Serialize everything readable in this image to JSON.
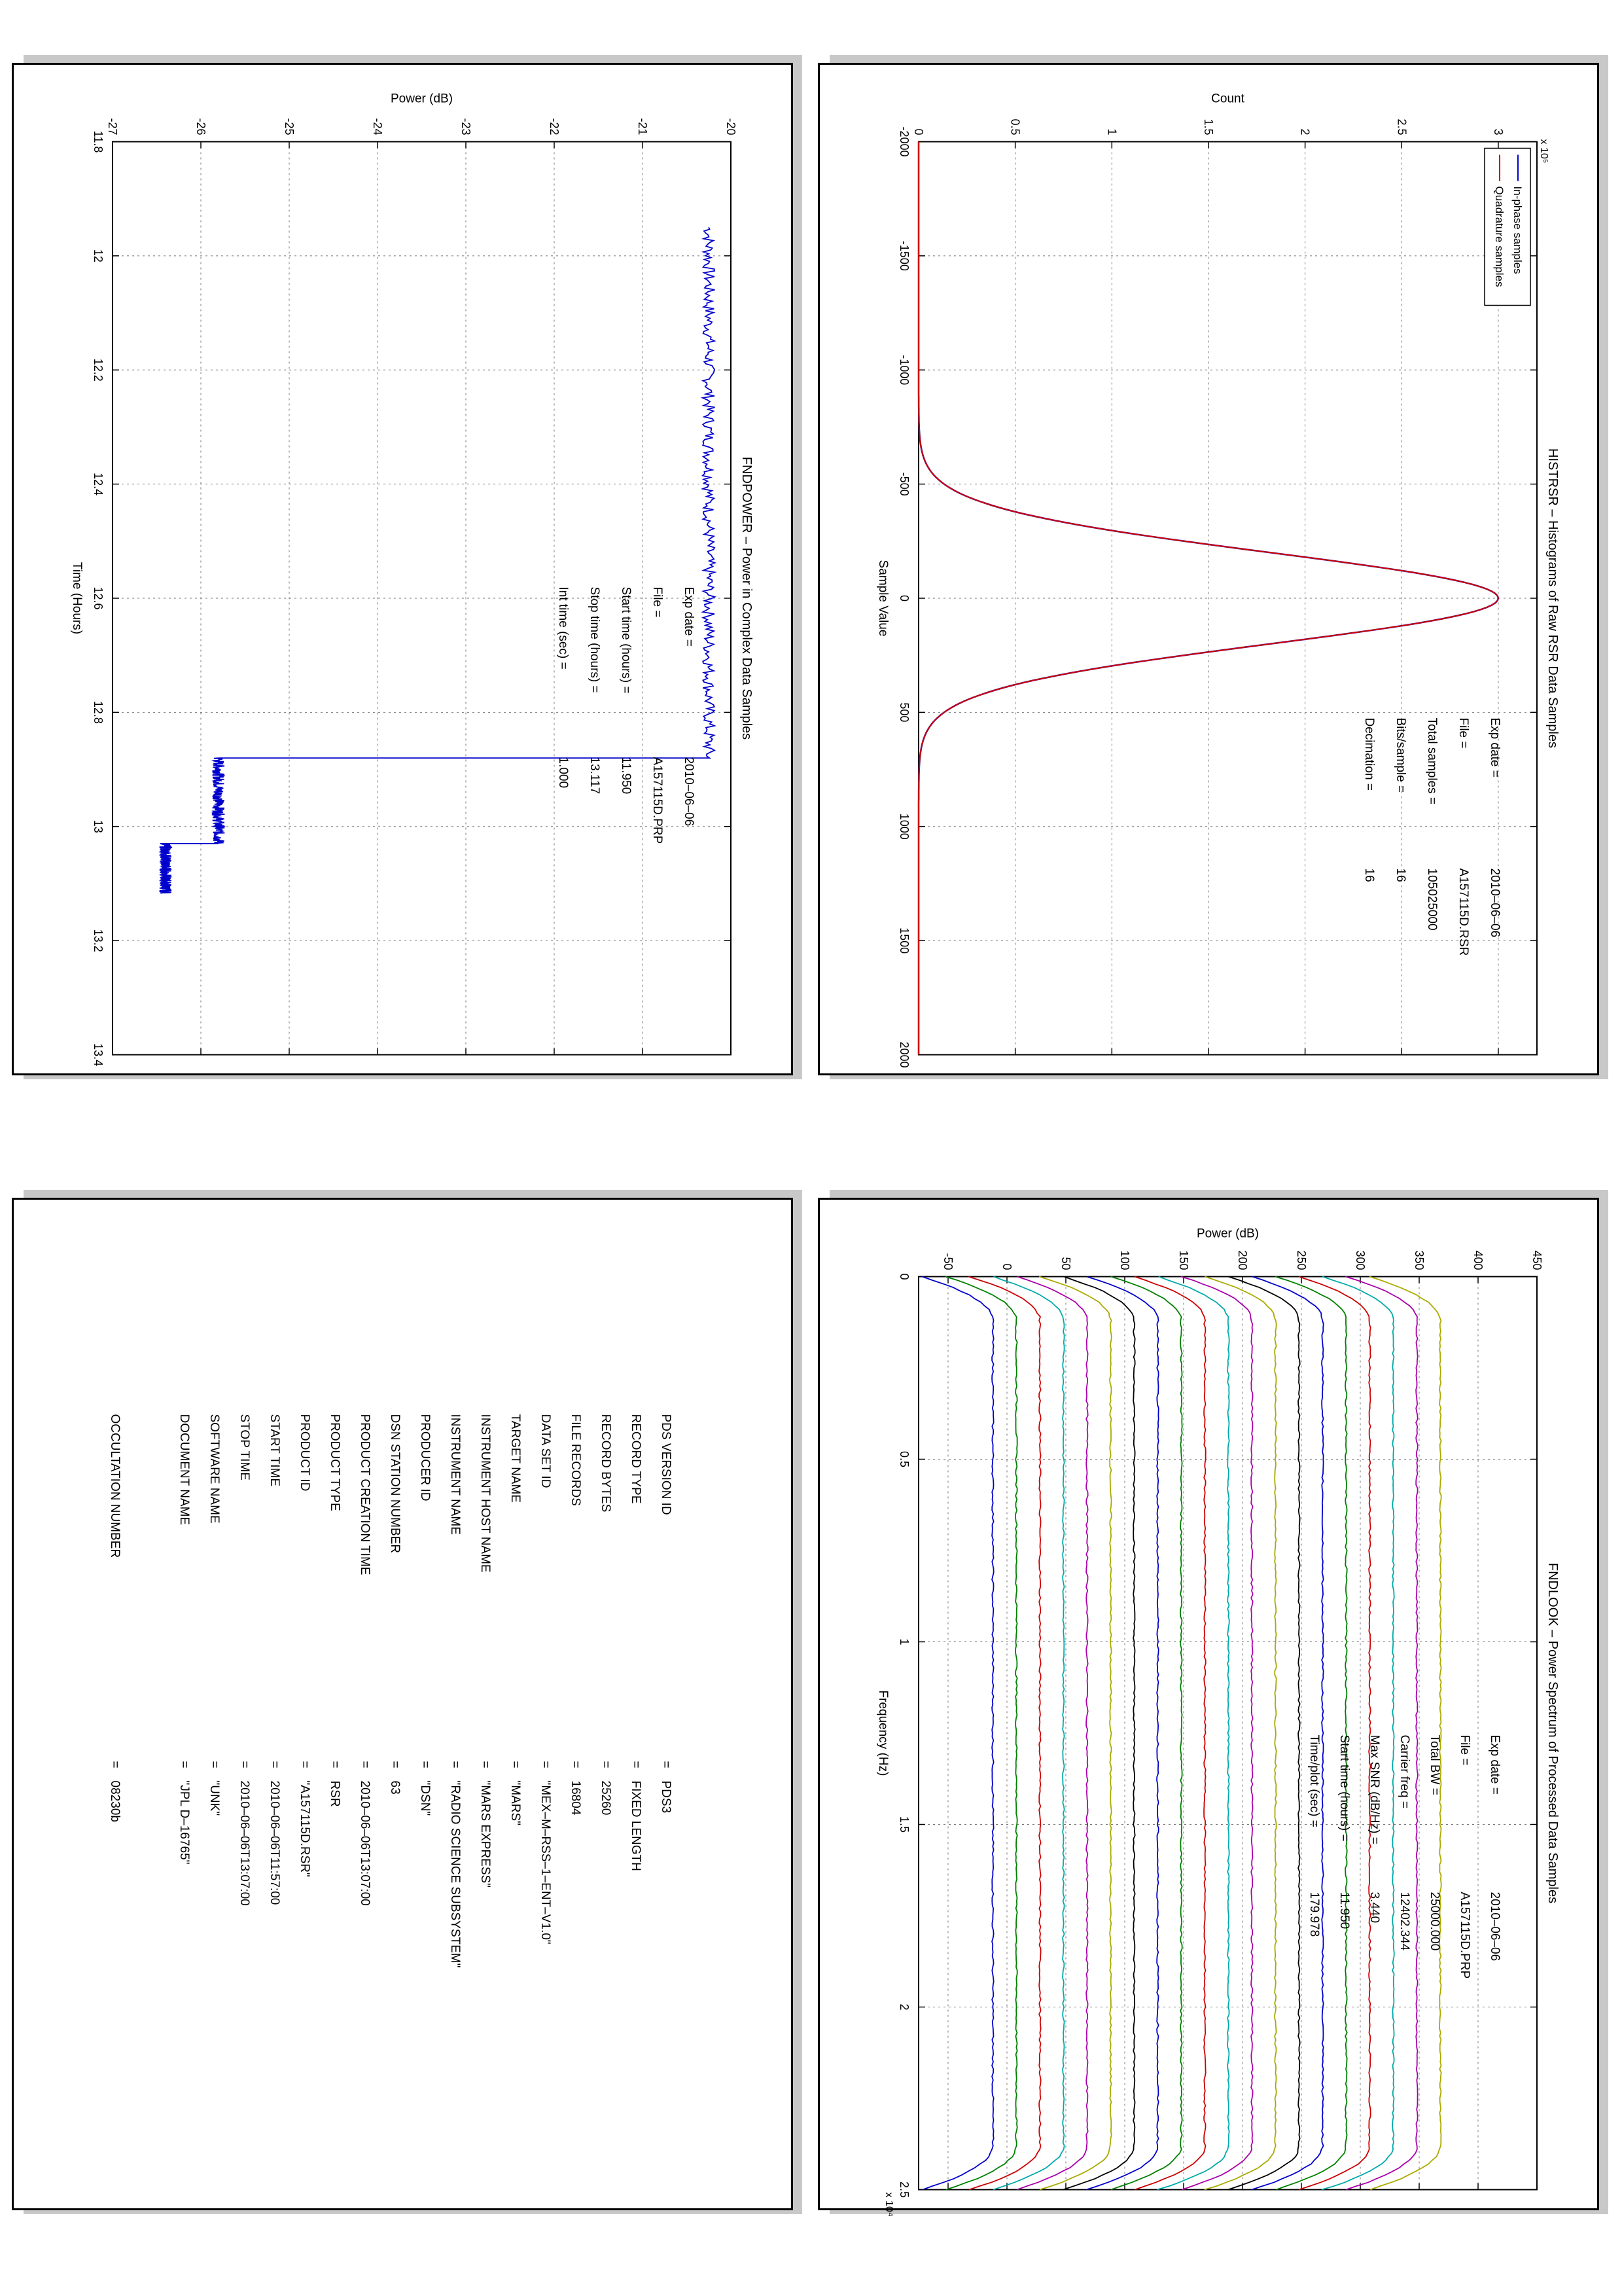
{
  "chart_data": [
    {
      "id": "histrsr",
      "type": "line",
      "title": "HISTRSR – Histograms of Raw RSR Data Samples",
      "xlabel": "Sample Value",
      "ylabel": "Count",
      "y_multiplier": "x 10⁵",
      "xlim": [
        -2000,
        2000
      ],
      "ylim": [
        0,
        3.2
      ],
      "xticks": [
        "-2000",
        "-1500",
        "-1000",
        "-500",
        "0",
        "500",
        "1000",
        "1500",
        "2000"
      ],
      "yticks": [
        "0",
        "0.5",
        "1",
        "1.5",
        "2",
        "2.5",
        "3"
      ],
      "grid": true,
      "legend_position": "top-left",
      "series": [
        {
          "name": "In-phase samples",
          "color": "#0000cc",
          "shape": "gaussian",
          "mean": 0,
          "sigma": 200,
          "peak": 3.0
        },
        {
          "name": "Quadrature samples",
          "color": "#cc0000",
          "shape": "gaussian",
          "mean": 0,
          "sigma": 200,
          "peak": 3.0
        }
      ],
      "annotations": [
        {
          "label": "Exp date",
          "value": "2010–06–06"
        },
        {
          "label": "File",
          "value": "A157115D.RSR"
        },
        {
          "label": "Total samples",
          "value": "105025000"
        },
        {
          "label": "Bits/sample",
          "value": "16"
        },
        {
          "label": "Decimation",
          "value": "16"
        }
      ]
    },
    {
      "id": "fndpower",
      "type": "line",
      "title": "FNDPOWER – Power in Complex Data Samples",
      "xlabel": "Time (Hours)",
      "ylabel": "Power (dB)",
      "xlim": [
        11.8,
        13.4
      ],
      "ylim": [
        -27,
        -20
      ],
      "xticks": [
        "11.8",
        "12",
        "12.2",
        "12.4",
        "12.6",
        "12.8",
        "13",
        "13.2",
        "13.4"
      ],
      "yticks": [
        "-27",
        "-26",
        "-25",
        "-24",
        "-23",
        "-22",
        "-21",
        "-20"
      ],
      "grid": true,
      "series": [
        {
          "name": "",
          "color": "#0000cc",
          "segments": [
            {
              "x_start": 11.95,
              "x_end": 12.88,
              "y": -20.25
            },
            {
              "x_start": 12.88,
              "x_end": 13.03,
              "y": -25.8
            },
            {
              "x_start": 13.03,
              "x_end": 13.117,
              "y": -26.4
            }
          ]
        }
      ],
      "annotations": [
        {
          "label": "Exp date",
          "value": "2010–06–06"
        },
        {
          "label": "File",
          "value": "A157115D.PRP"
        },
        {
          "label": "Start time (hours)",
          "value": "11.950"
        },
        {
          "label": "Stop time (hours)",
          "value": "13.117"
        },
        {
          "label": "Int time (sec)",
          "value": "1.000"
        }
      ]
    },
    {
      "id": "fndlook",
      "type": "line",
      "title": "FNDLOOK – Power Spectrum of Processed Data Samples",
      "xlabel": "Frequency (Hz)",
      "ylabel": "Power (dB)",
      "x_multiplier": "x 10⁴",
      "xlim": [
        0,
        2.5
      ],
      "ylim": [
        -75,
        450
      ],
      "xticks": [
        "0",
        "0.5",
        "1",
        "1.5",
        "2",
        "2.5"
      ],
      "yticks": [
        "-50",
        "0",
        "50",
        "100",
        "150",
        "200",
        "250",
        "300",
        "350",
        "400",
        "450"
      ],
      "grid": true,
      "series_count": 20,
      "series_offsets": [
        -72,
        -52,
        -32,
        -12,
        8,
        28,
        48,
        68,
        88,
        108,
        128,
        148,
        168,
        188,
        208,
        228,
        248,
        268,
        288,
        308
      ],
      "colors": [
        "#0000cc",
        "#008000",
        "#cc0000",
        "#00aaaa",
        "#aa00aa",
        "#aaaa00",
        "#000000"
      ],
      "annotations": [
        {
          "label": "Exp date",
          "value": "2010–06–06"
        },
        {
          "label": "File",
          "value": "A157115D.PRP"
        },
        {
          "label": "Total BW",
          "value": "25000.000"
        },
        {
          "label": "Carrier freq",
          "value": "12402.344"
        },
        {
          "label": "Max SNR (dB/Hz)",
          "value": "3.440"
        },
        {
          "label": "Start time (hours)",
          "value": "11.950"
        },
        {
          "label": "Time/plot (sec)",
          "value": "179.978"
        }
      ]
    }
  ],
  "label_table": [
    {
      "key": "PDS VERSION ID",
      "value": "PDS3"
    },
    {
      "key": "RECORD TYPE",
      "value": "FIXED LENGTH"
    },
    {
      "key": "RECORD BYTES",
      "value": "25260"
    },
    {
      "key": "FILE RECORDS",
      "value": "16804"
    },
    {
      "key": "DATA SET ID",
      "value": "\"MEX–M–RSS–1–ENT–V1.0\""
    },
    {
      "key": "TARGET NAME",
      "value": "\"MARS\""
    },
    {
      "key": "INSTRUMENT HOST NAME",
      "value": "\"MARS EXPRESS\""
    },
    {
      "key": "INSTRUMENT NAME",
      "value": "\"RADIO SCIENCE SUBSYSTEM\""
    },
    {
      "key": "PRODUCER ID",
      "value": "\"DSN\""
    },
    {
      "key": "DSN STATION NUMBER",
      "value": "63"
    },
    {
      "key": "PRODUCT CREATION TIME",
      "value": "2010–06–06T13:07:00"
    },
    {
      "key": "PRODUCT TYPE",
      "value": "RSR"
    },
    {
      "key": "PRODUCT ID",
      "value": "\"A157115D.RSR\""
    },
    {
      "key": "START TIME",
      "value": "2010–06–06T11:57:00"
    },
    {
      "key": "STOP TIME",
      "value": "2010–06–06T13:07:00"
    },
    {
      "key": "SOFTWARE NAME",
      "value": "\"UNK\""
    },
    {
      "key": "DOCUMENT NAME",
      "value": "\"JPL D–16765\""
    },
    {
      "key": "OCCULTATION NUMBER",
      "value": "08230b",
      "gap_before": true
    }
  ]
}
